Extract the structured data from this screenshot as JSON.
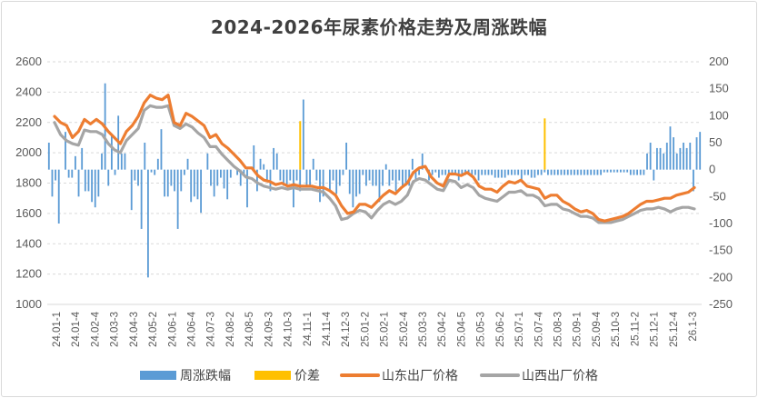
{
  "chart_data": {
    "type": "bar+line",
    "title": "2024-2026年尿素价格走势及周涨跌幅",
    "left_axis": {
      "min": 1000,
      "max": 2600,
      "step": 200,
      "ticks": [
        "1000",
        "1200",
        "1400",
        "1600",
        "1800",
        "2000",
        "2200",
        "2400",
        "2600"
      ]
    },
    "right_axis": {
      "min": -250,
      "max": 200,
      "step": 50,
      "ticks": [
        "-250",
        "-200",
        "-150",
        "-100",
        "-50",
        "0",
        "50",
        "100",
        "150",
        "200"
      ]
    },
    "grid": "dashed horizontal",
    "legend_position": "bottom",
    "x_labels": [
      "24.01-1",
      "24.01-4",
      "24.02-4",
      "24.03-3",
      "24.04-3",
      "24.05-2",
      "24.06-1",
      "24.06-4",
      "24.07-3",
      "24.08-2",
      "24.08-5",
      "24.09-3",
      "24.10-3",
      "24.11-1",
      "24.11-4",
      "24.12-3",
      "25.01-2",
      "25.02-1",
      "25.02-4",
      "25.03-3",
      "25.04-2",
      "25.04-5",
      "25.05-3",
      "25.06-2",
      "25.07-1",
      "25.07-4",
      "25.08-3",
      "25.09-1",
      "25.09-4",
      "25.10-3",
      "25.11-2",
      "25.12-1",
      "25.12-4",
      "26.1-3"
    ],
    "legend": [
      {
        "name": "周涨跌幅",
        "kind": "bar",
        "color": "#5b9bd5"
      },
      {
        "name": "价差",
        "kind": "bar",
        "color": "#ffc000"
      },
      {
        "name": "山东出厂价格",
        "kind": "line",
        "color": "#ed7d31"
      },
      {
        "name": "山西出厂价格",
        "kind": "line",
        "color": "#a5a5a5"
      }
    ],
    "series": [
      {
        "name": "山东出厂价格",
        "axis": "left",
        "color": "#ed7d31",
        "values": [
          2240,
          2200,
          2180,
          2100,
          2140,
          2220,
          2190,
          2220,
          2190,
          2140,
          2100,
          2060,
          2140,
          2180,
          2240,
          2330,
          2380,
          2360,
          2350,
          2380,
          2200,
          2180,
          2260,
          2240,
          2210,
          2180,
          2100,
          2120,
          2060,
          2030,
          1990,
          1950,
          1900,
          1900,
          1850,
          1820,
          1810,
          1790,
          1800,
          1780,
          1790,
          1780,
          1780,
          1780,
          1770,
          1770,
          1750,
          1720,
          1650,
          1600,
          1610,
          1660,
          1660,
          1640,
          1680,
          1720,
          1750,
          1730,
          1770,
          1800,
          1870,
          1900,
          1910,
          1840,
          1800,
          1780,
          1860,
          1860,
          1850,
          1870,
          1840,
          1780,
          1760,
          1760,
          1740,
          1780,
          1810,
          1800,
          1820,
          1780,
          1770,
          1760,
          1700,
          1720,
          1720,
          1680,
          1660,
          1630,
          1610,
          1620,
          1600,
          1560,
          1550,
          1560,
          1570,
          1580,
          1600,
          1630,
          1660,
          1680,
          1680,
          1690,
          1700,
          1700,
          1720,
          1730,
          1740,
          1770
        ]
      },
      {
        "name": "山西出厂价格",
        "axis": "left",
        "color": "#a5a5a5",
        "values": [
          2200,
          2120,
          2080,
          2060,
          2050,
          2150,
          2140,
          2140,
          2120,
          2060,
          2020,
          2000,
          2080,
          2120,
          2160,
          2280,
          2310,
          2300,
          2300,
          2310,
          2180,
          2160,
          2190,
          2170,
          2130,
          2100,
          2040,
          2040,
          1990,
          1950,
          1910,
          1880,
          1840,
          1830,
          1800,
          1780,
          1770,
          1760,
          1770,
          1760,
          1770,
          1760,
          1760,
          1760,
          1750,
          1740,
          1700,
          1650,
          1560,
          1570,
          1600,
          1620,
          1610,
          1570,
          1620,
          1660,
          1680,
          1660,
          1680,
          1720,
          1810,
          1830,
          1820,
          1790,
          1760,
          1750,
          1820,
          1810,
          1770,
          1790,
          1770,
          1720,
          1700,
          1690,
          1680,
          1710,
          1740,
          1740,
          1750,
          1720,
          1720,
          1700,
          1650,
          1660,
          1660,
          1630,
          1620,
          1600,
          1580,
          1580,
          1570,
          1540,
          1540,
          1540,
          1550,
          1560,
          1580,
          1600,
          1620,
          1630,
          1630,
          1640,
          1630,
          1610,
          1630,
          1640,
          1640,
          1630
        ]
      },
      {
        "name": "周涨跌幅",
        "axis": "right",
        "color": "#5b9bd5",
        "values": [
          50,
          -50,
          -20,
          -100,
          0,
          70,
          -15,
          -15,
          25,
          -50,
          40,
          -40,
          -40,
          -60,
          -70,
          -50,
          30,
          160,
          -30,
          65,
          -10,
          100,
          30,
          30,
          0,
          -75,
          -20,
          -30,
          -110,
          50,
          -200,
          -5,
          -10,
          20,
          75,
          -50,
          -50,
          -30,
          -40,
          -110,
          -40,
          -10,
          20,
          -60,
          -50,
          -55,
          -80,
          0,
          30,
          -30,
          -50,
          -30,
          -15,
          -35,
          -55,
          -15,
          0,
          -10,
          -30,
          -10,
          -70,
          0,
          45,
          -40,
          20,
          10,
          -20,
          -40,
          40,
          30,
          -20,
          -30,
          -30,
          -20,
          -70,
          -20,
          -40,
          130,
          -30,
          -30,
          20,
          -20,
          -60,
          -50,
          0,
          -40,
          -20,
          -45,
          -30,
          -10,
          50,
          -45,
          -70,
          -50,
          -45,
          -10,
          -30,
          -20,
          -30,
          -30,
          -60,
          -30,
          10,
          -30,
          -20,
          -40,
          -20,
          -30,
          -30,
          -30,
          20,
          -20,
          -10,
          30,
          0,
          -20,
          -10,
          -5,
          -15,
          -10,
          -10,
          -10,
          -10,
          -10,
          -20,
          -10,
          -10,
          -10,
          -10,
          -10,
          -20,
          -10,
          -10,
          -10,
          -10,
          -15,
          -15,
          -15,
          -15,
          -10,
          -10,
          -10,
          -10,
          -20,
          -10,
          -10,
          -15,
          -15,
          -10,
          -10,
          -5,
          -10,
          -10,
          -10,
          -10,
          -10,
          -10,
          -10,
          -10,
          -10,
          -10,
          -10,
          -10,
          -10,
          -10,
          -10,
          -10,
          -10,
          -5,
          -5,
          -5,
          -5,
          -5,
          -5,
          -5,
          -5,
          -10,
          -10,
          -10,
          -10,
          -10,
          30,
          50,
          -20,
          40,
          40,
          30,
          50,
          80,
          60,
          30,
          40,
          50,
          40,
          50,
          -40,
          60,
          70
        ]
      },
      {
        "name": "价差",
        "axis": "right",
        "color": "#ffc000",
        "values": [
          {
            "index": 76,
            "value": 90
          },
          {
            "index": 150,
            "value": 95
          }
        ]
      }
    ]
  }
}
